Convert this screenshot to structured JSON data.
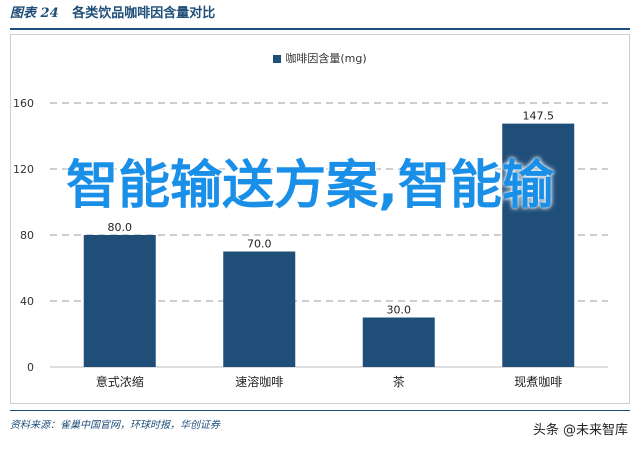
{
  "header": {
    "figure_label": "图表 24",
    "title": "各类饮品咖啡因含量对比"
  },
  "legend": {
    "label": "咖啡因含量(mg)"
  },
  "chart_data": {
    "type": "bar",
    "categories": [
      "意式浓缩",
      "速溶咖啡",
      "茶",
      "现煮咖啡"
    ],
    "series": [
      {
        "name": "咖啡因含量(mg)",
        "values": [
          80.0,
          70.0,
          30.0,
          147.5
        ]
      }
    ],
    "data_labels": [
      "80.0",
      "70.0",
      "30.0",
      "147.5"
    ],
    "yticks": [
      "0",
      "40",
      "80",
      "120",
      "160"
    ],
    "ylim": [
      0,
      160
    ],
    "grid": true,
    "bar_color": "#1f4e79"
  },
  "source": "资料来源：雀巢中国官网，环球时报，华创证券",
  "watermark": "头条 @未来智库",
  "overlay_text": "智能输送方案,智能输"
}
